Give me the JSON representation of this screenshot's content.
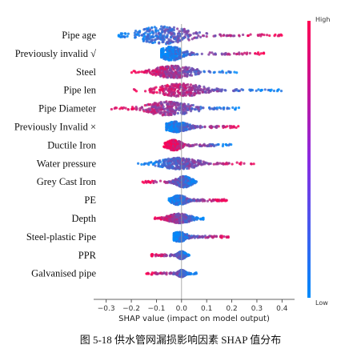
{
  "caption": "图 5-18 供水管网漏损影响因素 SHAP 值分布",
  "chart_data": {
    "type": "scatter",
    "subtype": "shap-beeswarm",
    "xlabel": "SHAP value (impact on model output)",
    "xlim": [
      -0.35,
      0.45
    ],
    "xticks": [
      -0.3,
      -0.2,
      -0.1,
      0.0,
      0.1,
      0.2,
      0.3,
      0.4
    ],
    "xtick_labels": [
      "−0.3",
      "−0.2",
      "−0.1",
      "0.0",
      "0.1",
      "0.2",
      "0.3",
      "0.4"
    ],
    "colorbar": {
      "high_label": "High",
      "low_label": "Low",
      "high_color": "#ff0052",
      "low_color": "#008bfb"
    },
    "features": [
      {
        "name": "Pipe age",
        "min": -0.25,
        "max": 0.4,
        "center": -0.07,
        "spread": 0.07,
        "height": 1.0,
        "low_side": "left"
      },
      {
        "name": "Previously invalid √",
        "min": -0.08,
        "max": 0.34,
        "center": -0.04,
        "spread": 0.03,
        "height": 0.8,
        "low_side": "left"
      },
      {
        "name": "Steel",
        "min": -0.2,
        "max": 0.22,
        "center": -0.03,
        "spread": 0.05,
        "height": 0.7,
        "low_side": "right"
      },
      {
        "name": "Pipe len",
        "min": -0.19,
        "max": 0.41,
        "center": 0.0,
        "spread": 0.06,
        "height": 0.75,
        "low_side": "right"
      },
      {
        "name": "Pipe Diameter",
        "min": -0.28,
        "max": 0.24,
        "center": -0.05,
        "spread": 0.06,
        "height": 0.8,
        "low_side": "right"
      },
      {
        "name": "Previously Invalid ×",
        "min": -0.06,
        "max": 0.23,
        "center": -0.02,
        "spread": 0.03,
        "height": 0.6,
        "low_side": "left"
      },
      {
        "name": "Ductile Iron",
        "min": -0.07,
        "max": 0.21,
        "center": -0.03,
        "spread": 0.02,
        "height": 0.6,
        "low_side": "right"
      },
      {
        "name": "Water pressure",
        "min": -0.18,
        "max": 0.29,
        "center": -0.01,
        "spread": 0.05,
        "height": 0.65,
        "low_side": "left"
      },
      {
        "name": "Grey Cast Iron",
        "min": -0.16,
        "max": 0.07,
        "center": 0.01,
        "spread": 0.02,
        "height": 0.65,
        "low_side": "right"
      },
      {
        "name": "PE",
        "min": -0.05,
        "max": 0.18,
        "center": -0.01,
        "spread": 0.02,
        "height": 0.55,
        "low_side": "left"
      },
      {
        "name": "Depth",
        "min": -0.11,
        "max": 0.09,
        "center": -0.01,
        "spread": 0.03,
        "height": 0.55,
        "low_side": "right"
      },
      {
        "name": "Steel-plastic Pipe",
        "min": -0.03,
        "max": 0.19,
        "center": -0.01,
        "spread": 0.02,
        "height": 0.55,
        "low_side": "left"
      },
      {
        "name": "PPR",
        "min": -0.12,
        "max": 0.04,
        "center": 0.0,
        "spread": 0.01,
        "height": 0.45,
        "low_side": "right"
      },
      {
        "name": "Galvanised pipe",
        "min": -0.14,
        "max": 0.06,
        "center": 0.0,
        "spread": 0.01,
        "height": 0.4,
        "low_side": "right"
      }
    ]
  }
}
